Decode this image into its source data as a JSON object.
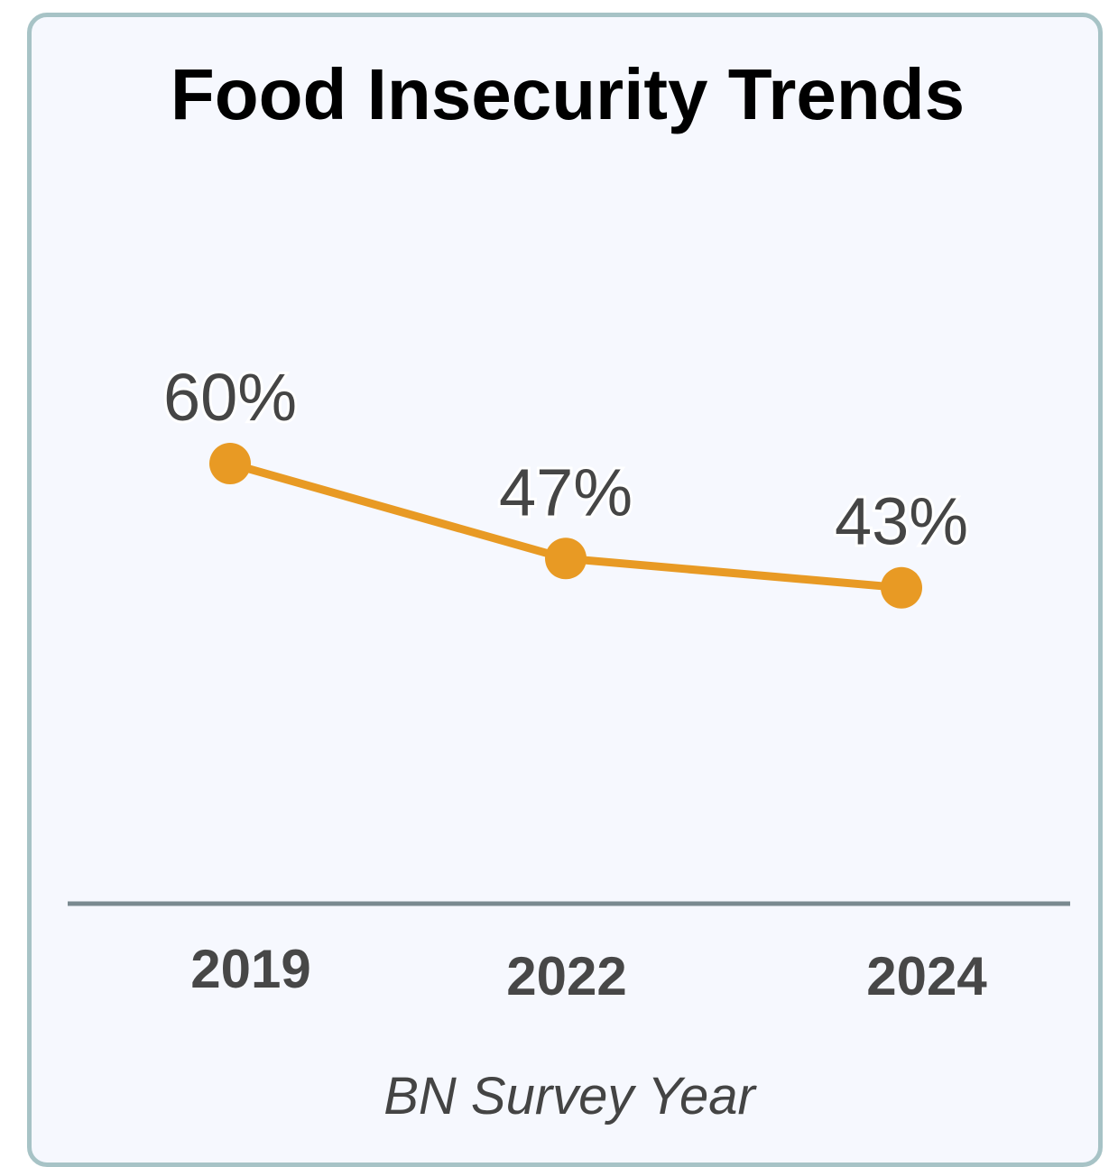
{
  "chart_data": {
    "type": "line",
    "title": "Food Insecurity Trends",
    "xlabel": "BN Survey Year",
    "ylabel": "",
    "categories": [
      "2019",
      "2022",
      "2024"
    ],
    "values": [
      60,
      47,
      43
    ],
    "value_labels": [
      "60%",
      "47%",
      "43%"
    ],
    "value_unit": "%",
    "ylim": [
      0,
      100
    ],
    "grid": false,
    "legend": "none",
    "colors": {
      "line": "#E89A24",
      "axis": "#7A8A90",
      "card_border": "#A7C3C6",
      "card_background": "#F6F8FE",
      "label_text": "#454545"
    }
  }
}
